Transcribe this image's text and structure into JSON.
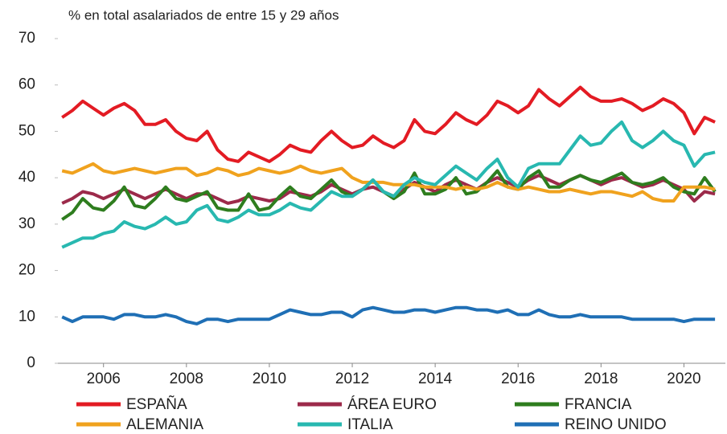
{
  "chart_data": {
    "type": "line",
    "subtitle": "% en total asalariados de entre 15 y 29 años",
    "x": [
      2005,
      2005.25,
      2005.5,
      2005.75,
      2006,
      2006.25,
      2006.5,
      2006.75,
      2007,
      2007.25,
      2007.5,
      2007.75,
      2008,
      2008.25,
      2008.5,
      2008.75,
      2009,
      2009.25,
      2009.5,
      2009.75,
      2010,
      2010.25,
      2010.5,
      2010.75,
      2011,
      2011.25,
      2011.5,
      2011.75,
      2012,
      2012.25,
      2012.5,
      2012.75,
      2013,
      2013.25,
      2013.5,
      2013.75,
      2014,
      2014.25,
      2014.5,
      2014.75,
      2015,
      2015.25,
      2015.5,
      2015.75,
      2016,
      2016.25,
      2016.5,
      2016.75,
      2017,
      2017.25,
      2017.5,
      2017.75,
      2018,
      2018.25,
      2018.5,
      2018.75,
      2019,
      2019.25,
      2019.5,
      2019.75,
      2020,
      2020.25,
      2020.5,
      2020.75
    ],
    "xlim": [
      2004.9,
      2021.0
    ],
    "xticks": [
      2006,
      2008,
      2010,
      2012,
      2014,
      2016,
      2018,
      2020
    ],
    "ylim": [
      0,
      70
    ],
    "yticks": [
      0,
      10,
      20,
      30,
      40,
      50,
      60,
      70
    ],
    "legend": "bottom",
    "series": [
      {
        "name": "ESPAÑA",
        "color": "#e31b23",
        "values": [
          53,
          54.5,
          56.5,
          55,
          53.5,
          55,
          56,
          54.5,
          51.5,
          51.5,
          52.5,
          50,
          48.5,
          48,
          50,
          46,
          44,
          43.5,
          45.5,
          44.5,
          43.5,
          45,
          47,
          46,
          45.5,
          48,
          50,
          48,
          46.5,
          47,
          49,
          47.5,
          46.5,
          48,
          52.5,
          50,
          49.5,
          51.5,
          54,
          52.5,
          51.5,
          53.5,
          56.5,
          55.5,
          54,
          55.5,
          59,
          57,
          55.5,
          57.5,
          59.5,
          57.5,
          56.5,
          56.5,
          57,
          56,
          54.5,
          55.5,
          57,
          56,
          54,
          49.5,
          53,
          52
        ]
      },
      {
        "name": "ÁREA EURO",
        "color": "#9c2a4a",
        "values": [
          34.5,
          35.5,
          37,
          36.5,
          35.5,
          36.5,
          37.5,
          36.5,
          35.5,
          36.5,
          37.5,
          36.5,
          35.5,
          36.5,
          36.5,
          35.5,
          34.5,
          35,
          36,
          35.5,
          35,
          35.5,
          37,
          36.5,
          36,
          37,
          38.5,
          37.5,
          36.5,
          37.5,
          38,
          37,
          36,
          37.5,
          39,
          38,
          37,
          38.5,
          39.5,
          38.5,
          37.5,
          39,
          40,
          39,
          38,
          39.5,
          40.5,
          39.5,
          38.5,
          39.5,
          40.5,
          39.5,
          38.5,
          39.5,
          40,
          39,
          38,
          38.5,
          39.5,
          38.5,
          37.5,
          35,
          37,
          36.5
        ]
      },
      {
        "name": "FRANCIA",
        "color": "#2e7d1e",
        "values": [
          31,
          32.5,
          35.5,
          33.5,
          33,
          35,
          38,
          34,
          33.5,
          35.5,
          38,
          35.5,
          35,
          36,
          37,
          33.5,
          33,
          33,
          36.5,
          33,
          33.5,
          36,
          38,
          36,
          35.5,
          37.5,
          39.5,
          37,
          36,
          37.5,
          39.5,
          37,
          35.5,
          37,
          41,
          36.5,
          36.5,
          37.5,
          40,
          36.5,
          37,
          39,
          41.5,
          38,
          37.5,
          40,
          41.5,
          38,
          38,
          39.5,
          40.5,
          39.5,
          39,
          40,
          41,
          39,
          38.5,
          39,
          40,
          38,
          37,
          36.5,
          40,
          37
        ]
      },
      {
        "name": "ALEMANIA",
        "color": "#f0a21e",
        "values": [
          41.5,
          41,
          42,
          43,
          41.5,
          41,
          41.5,
          42,
          41.5,
          41,
          41.5,
          42,
          42,
          40.5,
          41,
          42,
          41.5,
          40.5,
          41,
          42,
          41.5,
          41,
          41.5,
          42.5,
          41.5,
          41,
          41.5,
          42,
          40,
          39,
          39,
          39,
          38.5,
          38.5,
          38.5,
          38,
          38,
          38,
          37.5,
          38,
          37.5,
          38,
          39,
          38,
          37.5,
          38,
          37.5,
          37,
          37,
          37.5,
          37,
          36.5,
          37,
          37,
          36.5,
          36,
          37,
          35.5,
          35,
          35,
          38,
          38,
          38,
          37.5
        ]
      },
      {
        "name": "ITALIA",
        "color": "#28b8b0",
        "values": [
          25,
          26,
          27,
          27,
          28,
          28.5,
          30.5,
          29.5,
          29,
          30,
          31.5,
          30,
          30.5,
          33,
          34,
          31,
          30.5,
          31.5,
          33,
          32,
          32,
          33,
          34.5,
          33.5,
          33,
          35,
          37,
          36,
          36,
          37.5,
          39.5,
          37,
          36,
          38.5,
          40,
          39,
          38.5,
          40.5,
          42.5,
          41,
          39.5,
          42,
          44,
          40,
          38,
          42,
          43,
          43,
          43,
          46,
          49,
          47,
          47.5,
          50,
          52,
          48,
          46.5,
          48,
          50,
          48,
          47,
          42.5,
          45,
          45.5
        ]
      },
      {
        "name": "REINO UNIDO",
        "color": "#1f6fb5",
        "values": [
          10,
          9,
          10,
          10,
          10,
          9.5,
          10.5,
          10.5,
          10,
          10,
          10.5,
          10,
          9,
          8.5,
          9.5,
          9.5,
          9,
          9.5,
          9.5,
          9.5,
          9.5,
          10.5,
          11.5,
          11,
          10.5,
          10.5,
          11,
          11,
          10,
          11.5,
          12,
          11.5,
          11,
          11,
          11.5,
          11.5,
          11,
          11.5,
          12,
          12,
          11.5,
          11.5,
          11,
          11.5,
          10.5,
          10.5,
          11.5,
          10.5,
          10,
          10,
          10.5,
          10,
          10,
          10,
          10,
          9.5,
          9.5,
          9.5,
          9.5,
          9.5,
          9,
          9.5,
          9.5,
          9.5
        ]
      }
    ]
  }
}
